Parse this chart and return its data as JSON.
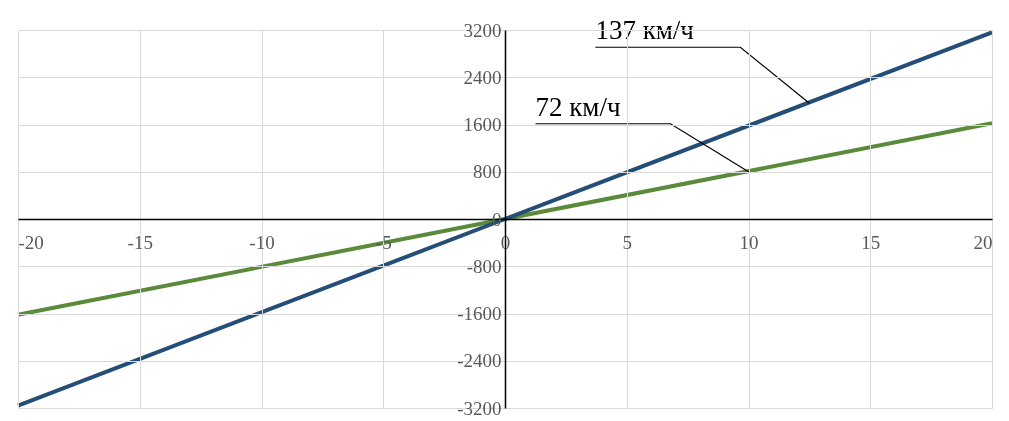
{
  "chart_data": {
    "type": "line",
    "x": [
      -20,
      0,
      20
    ],
    "series": [
      {
        "color": "#5b8a3a",
        "values": [
          -1620,
          0,
          1620
        ]
      },
      {
        "color": "#254e77",
        "values": [
          -3160,
          0,
          3160
        ]
      }
    ],
    "xlim": [
      -20,
      20
    ],
    "xticks": [
      -20,
      -15,
      -10,
      -5,
      0,
      5,
      10,
      15,
      20
    ],
    "ylim": [
      -3200,
      3200
    ],
    "yticks": [
      -3200,
      -2400,
      -1600,
      -800,
      0,
      800,
      1600,
      2400,
      3200
    ],
    "grid": true,
    "marker": "none",
    "line_style": "solid",
    "annotations": [
      {
        "text": "137 км/ч",
        "x": 12.5,
        "y": 1960
      },
      {
        "text": "72 км/ч",
        "x": 10,
        "y": 800
      }
    ]
  }
}
